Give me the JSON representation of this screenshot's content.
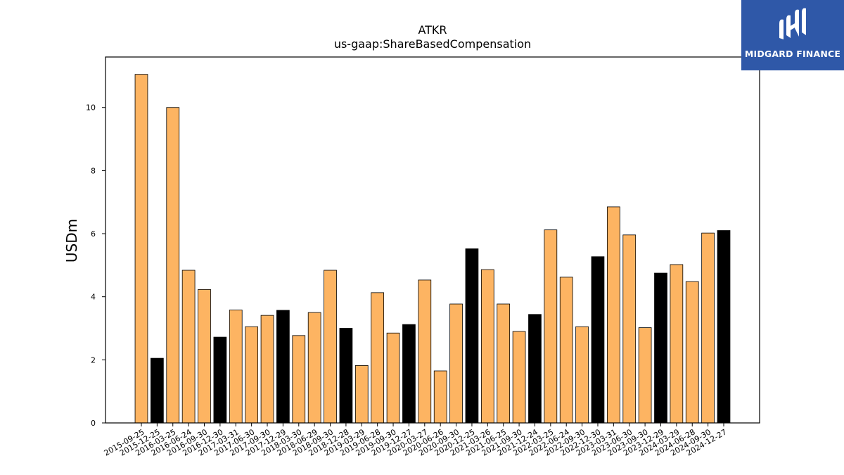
{
  "brand": {
    "name": "MIDGARD FINANCE",
    "bg_color": "#2f58a8"
  },
  "chart_data": {
    "type": "bar",
    "title": "ATKR",
    "subtitle": "us-gaap:ShareBasedCompensation",
    "ylabel": "USDm",
    "xlabel": "",
    "ylim": [
      0,
      11.6
    ],
    "yticks": [
      0,
      2,
      4,
      6,
      8,
      10
    ],
    "grid": false,
    "colors": {
      "quarter": "#fdb462",
      "fiscal_year_end": "#000000"
    },
    "categories": [
      "2015-09-25",
      "2015-12-25",
      "2016-03-25",
      "2016-06-24",
      "2016-09-30",
      "2016-12-30",
      "2017-03-31",
      "2017-06-30",
      "2017-09-30",
      "2017-12-29",
      "2018-03-30",
      "2018-06-29",
      "2018-09-30",
      "2018-12-28",
      "2019-03-29",
      "2019-06-28",
      "2019-09-30",
      "2019-12-27",
      "2020-03-27",
      "2020-06-26",
      "2020-09-30",
      "2020-12-25",
      "2021-03-26",
      "2021-06-25",
      "2021-09-30",
      "2021-12-24",
      "2022-03-25",
      "2022-06-24",
      "2022-09-30",
      "2022-12-30",
      "2023-03-31",
      "2023-06-30",
      "2023-09-30",
      "2023-12-29",
      "2024-03-29",
      "2024-06-28",
      "2024-09-30",
      "2024-12-27"
    ],
    "values": [
      11.05,
      2.05,
      10.0,
      4.84,
      4.23,
      2.72,
      3.58,
      3.05,
      3.41,
      3.57,
      2.77,
      3.5,
      4.84,
      3.0,
      1.82,
      4.13,
      2.85,
      3.12,
      4.53,
      1.65,
      3.77,
      5.52,
      4.86,
      3.77,
      2.9,
      3.44,
      6.12,
      4.62,
      3.05,
      5.27,
      6.85,
      5.96,
      3.02,
      4.75,
      5.02,
      4.48,
      6.02,
      6.1
    ],
    "highlight": [
      false,
      true,
      false,
      false,
      false,
      true,
      false,
      false,
      false,
      true,
      false,
      false,
      false,
      true,
      false,
      false,
      false,
      true,
      false,
      false,
      false,
      true,
      false,
      false,
      false,
      true,
      false,
      false,
      false,
      true,
      false,
      false,
      false,
      true,
      false,
      false,
      false,
      true
    ]
  }
}
